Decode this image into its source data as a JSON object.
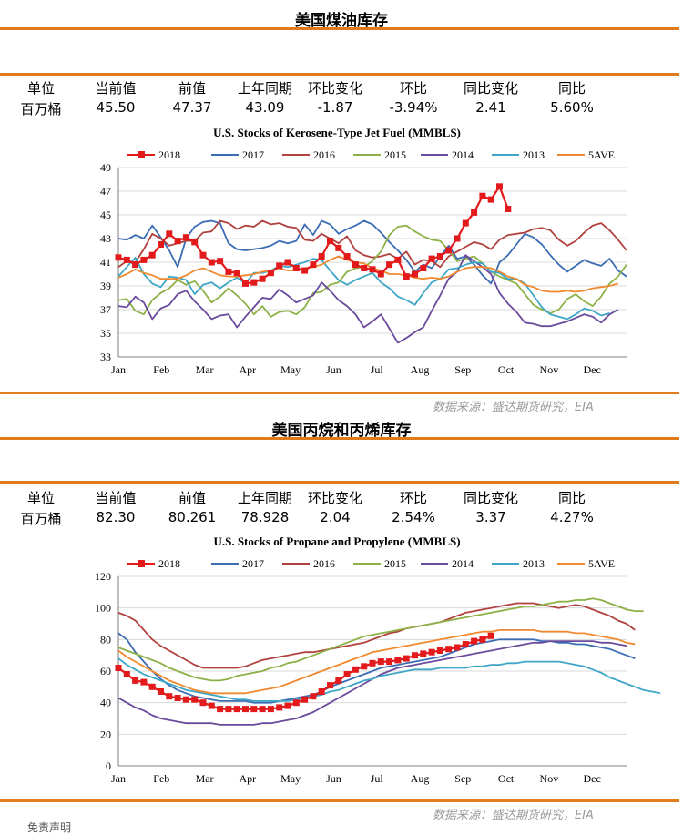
{
  "sections": [
    {
      "title": "美国煤油库存",
      "headers": [
        "单位",
        "当前值",
        "前值",
        "上年同期",
        "环比变化",
        "环比",
        "同比变化",
        "同比"
      ],
      "values": [
        "百万桶",
        "45.50",
        "47.37",
        "43.09",
        "-1.87",
        "-3.94%",
        "2.41",
        "5.60%"
      ],
      "source": "数据来源：盛达期货研究，EIA"
    },
    {
      "title": "美国丙烷和丙烯库存",
      "headers": [
        "单位",
        "当前值",
        "前值",
        "上年同期",
        "环比变化",
        "环比",
        "同比变化",
        "同比"
      ],
      "values": [
        "百万桶",
        "82.30",
        "80.261",
        "78.928",
        "2.04",
        "2.54%",
        "3.37",
        "4.27%"
      ],
      "source": "数据来源：盛达期货研究，EIA"
    }
  ],
  "footer_note": "免责声明",
  "colors": {
    "accent": "#e07a1b",
    "s2018": "#e31a1c",
    "s2017": "#3b6cb4",
    "s2016": "#b0413e",
    "s2015": "#8db146",
    "s2014": "#6a4a9c",
    "s2013": "#3ea6c6",
    "s5ave": "#f08a30"
  },
  "chart_data": [
    {
      "type": "line",
      "title": "U.S. Stocks of Kerosene-Type Jet Fuel (MMBLS)",
      "xlabel": "",
      "ylabel": "",
      "x_ticks": [
        "Jan",
        "Feb",
        "Mar",
        "Apr",
        "May",
        "Jun",
        "Jul",
        "Aug",
        "Sep",
        "Oct",
        "Nov",
        "Dec"
      ],
      "ylim": [
        33,
        49
      ],
      "y_ticks": [
        33,
        35,
        37,
        39,
        41,
        43,
        45,
        47,
        49
      ],
      "grid": true,
      "legend": "top",
      "series": [
        {
          "name": "2018",
          "color": "#e31a1c",
          "marker": "square",
          "values": [
            41.4,
            41.2,
            40.8,
            41.2,
            41.6,
            42.5,
            43.4,
            42.8,
            43.1,
            42.7,
            41.6,
            41.0,
            41.1,
            40.2,
            40.1,
            39.2,
            39.3,
            39.6,
            40.1,
            40.7,
            41.0,
            40.5,
            40.3,
            40.8,
            41.5,
            42.8,
            42.2,
            41.5,
            40.8,
            40.5,
            40.4,
            40.0,
            40.8,
            41.2,
            39.8,
            40.0,
            40.5,
            41.3,
            41.5,
            42.0,
            43.0,
            44.3,
            45.2,
            46.6,
            46.3,
            47.4,
            45.5
          ]
        },
        {
          "name": "2017",
          "color": "#3b6cb4",
          "values": [
            43.0,
            42.9,
            43.3,
            43.0,
            44.1,
            43.1,
            42.0,
            40.6,
            43.0,
            44.0,
            44.4,
            44.5,
            44.3,
            42.6,
            42.1,
            42.0,
            42.1,
            42.2,
            42.4,
            42.8,
            42.6,
            42.8,
            44.2,
            43.3,
            44.5,
            44.2,
            43.4,
            43.8,
            44.1,
            44.5,
            44.2,
            43.5,
            42.7,
            42.0,
            41.2,
            40.2,
            40.8,
            40.5,
            41.5,
            42.4,
            41.3,
            41.5,
            40.8,
            39.9,
            39.2,
            41.0,
            41.6,
            42.5,
            43.4,
            43.1,
            42.5,
            41.6,
            40.8,
            40.2,
            40.7,
            41.2,
            40.9,
            40.7,
            41.3,
            40.3,
            39.8
          ]
        },
        {
          "name": "2016",
          "color": "#b0413e",
          "values": [
            40.6,
            41.1,
            41.0,
            42.1,
            43.4,
            43.0,
            42.4,
            42.6,
            42.8,
            42.8,
            43.5,
            43.6,
            44.5,
            44.3,
            43.8,
            44.1,
            44.0,
            44.5,
            44.2,
            44.3,
            44.0,
            43.9,
            42.9,
            42.8,
            43.4,
            43.0,
            42.6,
            43.2,
            42.0,
            41.6,
            41.4,
            41.5,
            41.7,
            41.3,
            41.9,
            40.8,
            41.2,
            41.1,
            40.6,
            41.5,
            41.9,
            42.3,
            42.7,
            42.5,
            42.1,
            42.9,
            43.3,
            43.4,
            43.5,
            43.8,
            43.9,
            43.7,
            42.9,
            42.4,
            42.8,
            43.5,
            44.1,
            44.3,
            43.7,
            42.9,
            42.0
          ]
        },
        {
          "name": "2015",
          "color": "#8db146",
          "values": [
            37.8,
            37.9,
            36.9,
            36.6,
            37.8,
            38.4,
            38.8,
            39.5,
            39.1,
            39.4,
            38.6,
            37.6,
            38.1,
            38.8,
            38.2,
            37.5,
            36.6,
            37.3,
            36.4,
            36.8,
            36.9,
            36.6,
            37.2,
            38.4,
            38.5,
            39.1,
            39.3,
            40.2,
            40.5,
            40.6,
            41.1,
            41.9,
            43.3,
            44.0,
            44.1,
            43.6,
            43.2,
            42.9,
            42.8,
            42.0,
            41.1,
            41.3,
            41.5,
            40.9,
            40.2,
            39.8,
            39.5,
            39.2,
            38.3,
            37.4,
            37.0,
            36.7,
            37.0,
            37.9,
            38.3,
            37.7,
            37.3,
            38.1,
            39.2,
            39.8,
            40.8
          ]
        },
        {
          "name": "2014",
          "color": "#6a4a9c",
          "values": [
            37.3,
            37.2,
            38.1,
            37.6,
            36.2,
            37.1,
            37.4,
            38.3,
            38.6,
            37.7,
            37.0,
            36.2,
            36.5,
            36.6,
            35.5,
            36.4,
            37.2,
            38.0,
            37.9,
            38.7,
            38.2,
            37.6,
            37.9,
            38.2,
            39.3,
            38.6,
            37.8,
            37.3,
            36.6,
            35.5,
            36.0,
            36.6,
            35.4,
            34.2,
            34.6,
            35.1,
            35.5,
            36.9,
            38.2,
            39.6,
            40.2,
            41.6,
            41.1,
            40.6,
            40.0,
            38.4,
            37.5,
            36.8,
            35.9,
            35.8,
            35.6,
            35.6,
            35.8,
            36.0,
            36.3,
            36.6,
            36.4,
            35.9,
            36.6,
            37.0
          ]
        },
        {
          "name": "2013",
          "color": "#3ea6c6",
          "values": [
            39.8,
            40.6,
            41.4,
            40.0,
            39.2,
            38.9,
            39.8,
            39.7,
            39.5,
            38.3,
            39.1,
            39.3,
            38.8,
            39.3,
            39.7,
            39.2,
            40.1,
            40.1,
            40.3,
            40.7,
            40.6,
            40.8,
            41.0,
            41.3,
            41.2,
            40.3,
            39.5,
            39.1,
            39.5,
            39.8,
            40.1,
            39.3,
            38.8,
            38.1,
            37.8,
            37.4,
            38.4,
            39.3,
            39.6,
            40.4,
            40.5,
            40.8,
            41.0,
            40.9,
            40.2,
            40.1,
            39.6,
            39.6,
            39.2,
            38.2,
            37.2,
            36.6,
            36.4,
            36.2,
            36.6,
            37.1,
            36.9,
            36.5,
            36.7
          ]
        },
        {
          "name": "5AVE",
          "color": "#f08a30",
          "values": [
            39.7,
            40.0,
            40.4,
            40.1,
            39.9,
            39.6,
            39.6,
            39.6,
            39.9,
            40.3,
            40.5,
            40.2,
            39.9,
            39.8,
            39.8,
            39.9,
            40.0,
            40.2,
            40.3,
            40.5,
            40.3,
            40.3,
            40.5,
            40.6,
            40.8,
            41.2,
            41.5,
            41.2,
            41.0,
            40.9,
            40.5,
            40.3,
            40.0,
            40.0,
            39.9,
            39.7,
            39.6,
            39.7,
            39.6,
            39.8,
            40.2,
            40.5,
            40.6,
            40.6,
            40.5,
            40.2,
            39.8,
            39.6,
            39.1,
            38.9,
            38.6,
            38.5,
            38.5,
            38.6,
            38.5,
            38.6,
            38.8,
            38.9,
            39.0,
            39.2
          ]
        }
      ]
    },
    {
      "type": "line",
      "title": "U.S. Stocks of Propane and Propylene (MMBLS)",
      "xlabel": "",
      "ylabel": "",
      "x_ticks": [
        "Jan",
        "Feb",
        "Mar",
        "Apr",
        "May",
        "Jun",
        "Jul",
        "Aug",
        "Sep",
        "Oct",
        "Nov",
        "Dec"
      ],
      "ylim": [
        0,
        120
      ],
      "y_ticks": [
        0,
        20,
        40,
        60,
        80,
        100,
        120
      ],
      "grid": true,
      "legend": "top",
      "series": [
        {
          "name": "2018",
          "color": "#e31a1c",
          "marker": "square",
          "values": [
            62,
            58,
            54,
            53,
            50,
            47,
            44,
            43,
            42,
            42,
            40,
            38,
            36,
            36,
            36,
            36,
            36,
            36,
            36,
            37,
            38,
            40,
            42,
            44,
            47,
            51,
            54,
            58,
            61,
            63,
            65,
            66,
            66,
            67,
            68,
            70,
            71,
            72,
            73,
            74,
            75,
            77,
            79,
            80,
            82.3
          ]
        },
        {
          "name": "2017",
          "color": "#3b6cb4",
          "values": [
            84,
            80,
            72,
            66,
            60,
            55,
            51,
            48,
            46,
            44,
            43,
            42,
            41,
            41,
            41,
            41,
            40,
            40,
            40,
            41,
            42,
            43,
            44,
            45,
            47,
            50,
            52,
            54,
            56,
            58,
            60,
            62,
            63,
            64,
            65,
            66,
            67,
            68,
            69,
            71,
            73,
            75,
            77,
            78,
            79,
            80,
            80,
            80,
            80,
            80,
            79,
            79,
            78,
            78,
            77,
            77,
            76,
            75,
            74,
            72,
            70,
            68
          ]
        },
        {
          "name": "2016",
          "color": "#b0413e",
          "values": [
            97,
            95,
            92,
            86,
            80,
            76,
            73,
            70,
            67,
            64,
            62,
            62,
            62,
            62,
            62,
            63,
            65,
            67,
            68,
            69,
            70,
            71,
            72,
            72,
            73,
            74,
            75,
            76,
            77,
            78,
            80,
            82,
            84,
            85,
            87,
            88,
            89,
            90,
            91,
            93,
            95,
            97,
            98,
            99,
            100,
            101,
            102,
            103,
            103,
            103,
            102,
            101,
            100,
            101,
            102,
            101,
            99,
            97,
            95,
            92,
            90,
            86
          ]
        },
        {
          "name": "2015",
          "color": "#8db146",
          "values": [
            75,
            73,
            71,
            69,
            67,
            65,
            62,
            60,
            58,
            56,
            55,
            54,
            54,
            55,
            57,
            58,
            59,
            60,
            62,
            63,
            65,
            66,
            68,
            70,
            72,
            74,
            76,
            78,
            80,
            82,
            83,
            84,
            85,
            86,
            87,
            88,
            89,
            90,
            91,
            92,
            93,
            94,
            95,
            96,
            97,
            98,
            99,
            100,
            101,
            101,
            102,
            103,
            104,
            104,
            105,
            105,
            106,
            105,
            103,
            101,
            99,
            98,
            98
          ]
        },
        {
          "name": "2014",
          "color": "#6a4a9c",
          "values": [
            43,
            40,
            37,
            35,
            32,
            30,
            29,
            28,
            27,
            27,
            27,
            27,
            26,
            26,
            26,
            26,
            26,
            27,
            27,
            28,
            29,
            30,
            32,
            34,
            37,
            40,
            43,
            46,
            49,
            52,
            55,
            58,
            60,
            62,
            63,
            64,
            65,
            66,
            67,
            68,
            69,
            70,
            71,
            72,
            73,
            74,
            75,
            76,
            77,
            78,
            78,
            79,
            79,
            79,
            79,
            79,
            79,
            78,
            78,
            77,
            76
          ]
        },
        {
          "name": "2013",
          "color": "#3ea6c6",
          "values": [
            68,
            64,
            61,
            58,
            56,
            54,
            52,
            50,
            48,
            47,
            46,
            45,
            44,
            43,
            42,
            42,
            41,
            41,
            41,
            41,
            41,
            42,
            43,
            44,
            45,
            47,
            48,
            50,
            52,
            54,
            55,
            57,
            58,
            59,
            60,
            61,
            61,
            61,
            62,
            62,
            62,
            62,
            63,
            63,
            64,
            64,
            65,
            65,
            66,
            66,
            66,
            66,
            66,
            65,
            64,
            63,
            61,
            59,
            56,
            54,
            52,
            50,
            48,
            47,
            46
          ]
        },
        {
          "name": "5AVE",
          "color": "#f08a30",
          "values": [
            73,
            69,
            66,
            63,
            60,
            57,
            54,
            52,
            50,
            48,
            47,
            46,
            46,
            46,
            46,
            46,
            47,
            48,
            49,
            50,
            52,
            54,
            56,
            58,
            60,
            62,
            64,
            66,
            68,
            70,
            72,
            73,
            74,
            75,
            76,
            77,
            78,
            79,
            80,
            81,
            82,
            83,
            84,
            85,
            85,
            86,
            86,
            86,
            86,
            86,
            85,
            85,
            85,
            85,
            84,
            84,
            83,
            82,
            81,
            80,
            78,
            77
          ]
        }
      ]
    }
  ]
}
